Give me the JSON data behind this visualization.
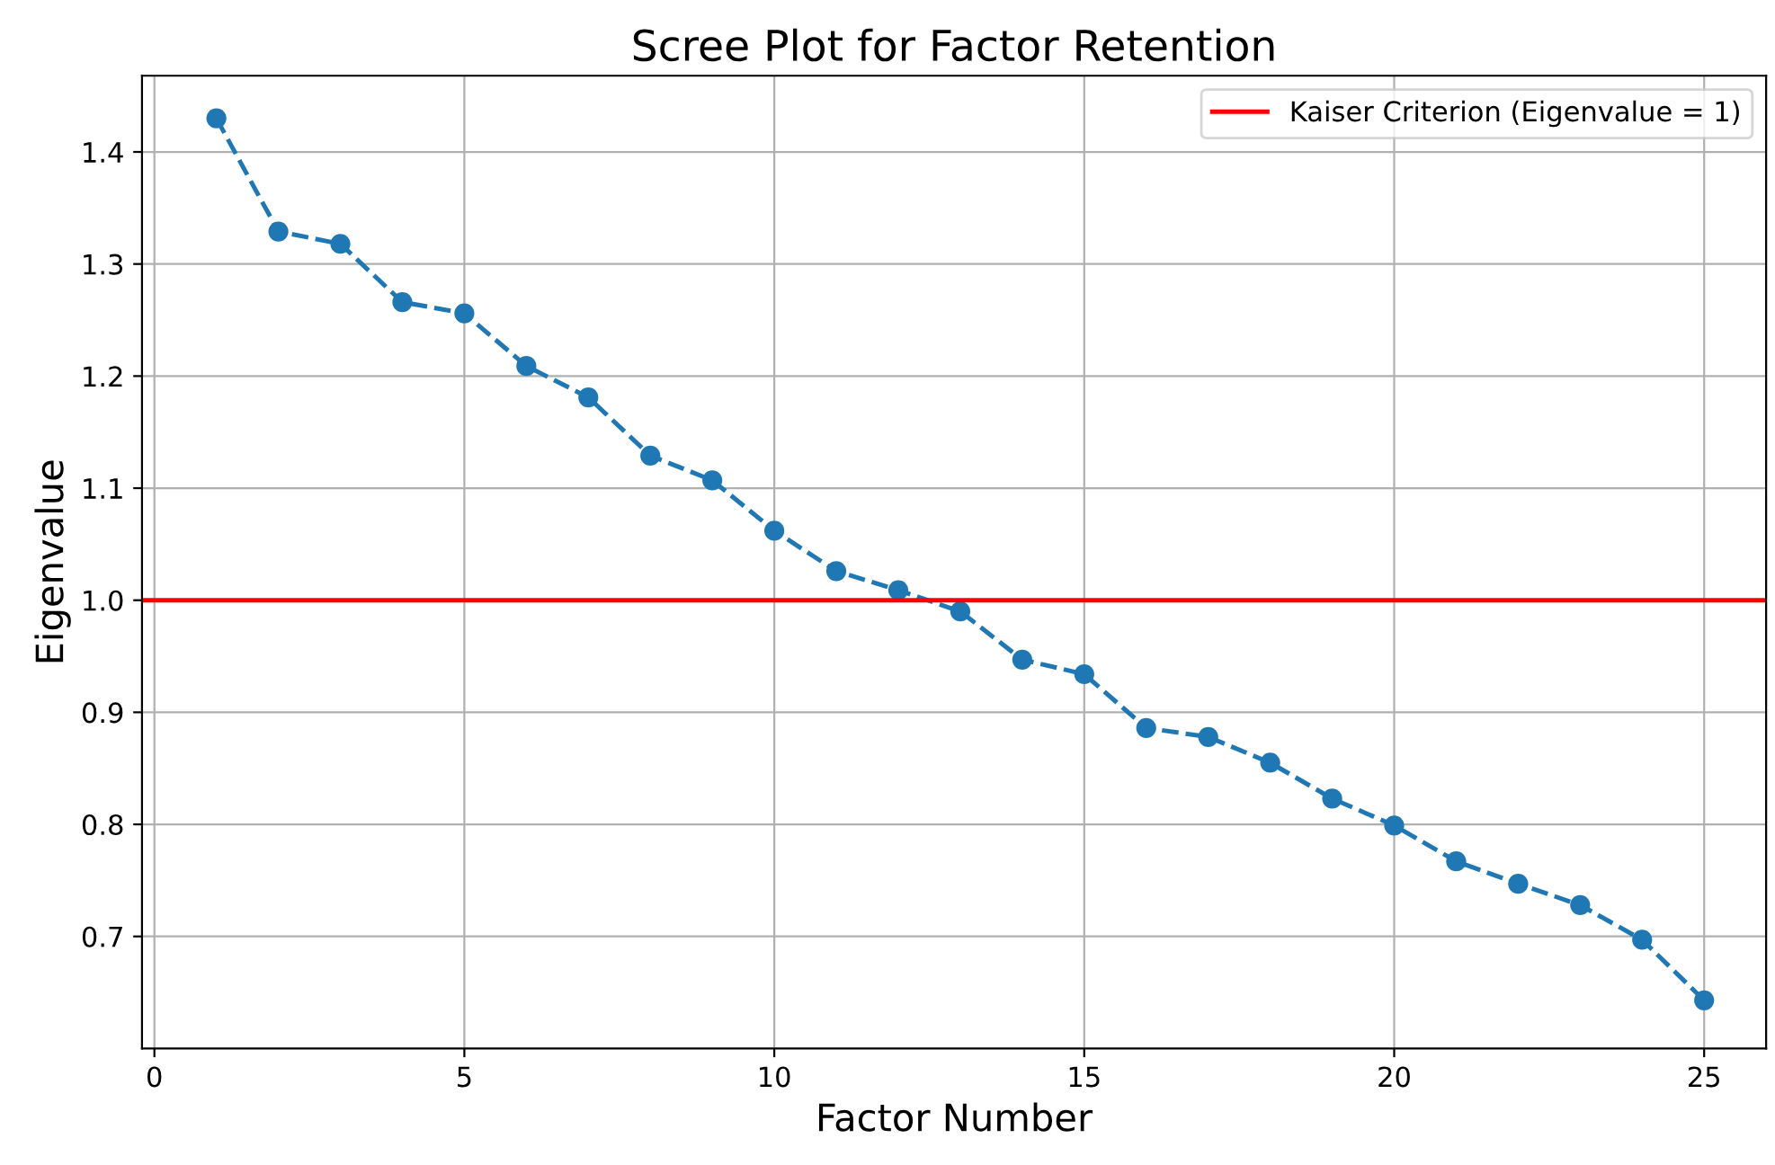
{
  "chart_data": {
    "type": "line",
    "title": "Scree Plot for Factor Retention",
    "xlabel": "Factor Number",
    "ylabel": "Eigenvalue",
    "x": [
      1,
      2,
      3,
      4,
      5,
      6,
      7,
      8,
      9,
      10,
      11,
      12,
      13,
      14,
      15,
      16,
      17,
      18,
      19,
      20,
      21,
      22,
      23,
      24,
      25
    ],
    "series": [
      {
        "color": "#1f77b4",
        "values": [
          1.43,
          1.329,
          1.318,
          1.266,
          1.256,
          1.209,
          1.181,
          1.129,
          1.107,
          1.062,
          1.026,
          1.009,
          0.99,
          0.947,
          0.934,
          0.886,
          0.878,
          0.855,
          0.823,
          0.799,
          0.767,
          0.747,
          0.728,
          0.697,
          0.643
        ]
      }
    ],
    "marker": "circle",
    "line_style": "dashed",
    "xlim": [
      -0.2,
      26
    ],
    "ylim": [
      0.6,
      1.468
    ],
    "xticks": [
      0,
      5,
      10,
      15,
      20,
      25
    ],
    "yticks": [
      0.7,
      0.8,
      0.9,
      {
        "value": 1,
        "label": "1.0"
      },
      1.1,
      1.2,
      1.3,
      1.4
    ],
    "ref_lines": [
      {
        "axis": "y",
        "value": 1,
        "label": "Kaiser Criterion (Eigenvalue = 1)",
        "color": "#ff0000",
        "line_style": "solid"
      }
    ],
    "grid": true,
    "legend": "top right"
  }
}
